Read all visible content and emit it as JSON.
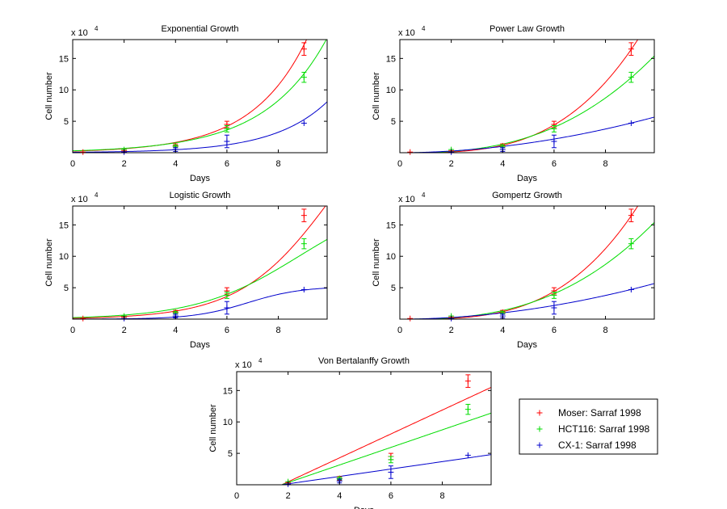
{
  "chart_data": [
    {
      "type": "line",
      "title": "Exponential Growth",
      "xlabel": "Days",
      "ylabel": "Cell number",
      "exponent_label": "x 10",
      "exponent_power": "4",
      "xlim": [
        0,
        9.9
      ],
      "ylim": [
        0,
        18
      ],
      "xticks": [
        0,
        2,
        4,
        6,
        8
      ],
      "yticks": [
        5,
        10,
        15
      ],
      "series": [
        {
          "name": "Moser: Sarraf 1998",
          "color": "#ff0000",
          "points": [
            {
              "x": 0.4,
              "y": 0.1
            },
            {
              "x": 2,
              "y": 0.3
            },
            {
              "x": 4,
              "y": 1.1
            },
            {
              "x": 6,
              "y": 4.5
            },
            {
              "x": 9,
              "y": 16.5
            }
          ],
          "errors": [
            0,
            0,
            0.3,
            0.5,
            1.0
          ],
          "fit": {
            "model": "exp",
            "a": 0.25,
            "b": 0.47
          }
        },
        {
          "name": "HCT116: Sarraf 1998",
          "color": "#00dd00",
          "points": [
            {
              "x": 2,
              "y": 0.5
            },
            {
              "x": 4,
              "y": 1.0
            },
            {
              "x": 6,
              "y": 3.8
            },
            {
              "x": 9,
              "y": 12.0
            }
          ],
          "errors": [
            0,
            0.2,
            0.5,
            0.8
          ],
          "fit": {
            "model": "exp",
            "a": 0.3,
            "b": 0.415
          }
        },
        {
          "name": "CX-1: Sarraf 1998",
          "color": "#0000cc",
          "points": [
            {
              "x": 2,
              "y": 0.1
            },
            {
              "x": 4,
              "y": 0.5
            },
            {
              "x": 6,
              "y": 1.8
            },
            {
              "x": 9,
              "y": 4.7
            }
          ],
          "errors": [
            0,
            0.3,
            1.0,
            0
          ],
          "fit": {
            "model": "exp",
            "a": 0.07,
            "b": 0.48
          }
        }
      ]
    },
    {
      "type": "line",
      "title": "Power Law Growth",
      "xlabel": "Days",
      "ylabel": "Cell number",
      "exponent_label": "x 10",
      "exponent_power": "4",
      "xlim": [
        0,
        9.9
      ],
      "ylim": [
        0,
        18
      ],
      "xticks": [
        0,
        2,
        4,
        6,
        8
      ],
      "yticks": [
        5,
        10,
        15
      ],
      "series": [
        {
          "name": "Moser: Sarraf 1998",
          "color": "#ff0000",
          "points": [
            {
              "x": 0.4,
              "y": 0.1
            },
            {
              "x": 2,
              "y": 0.3
            },
            {
              "x": 4,
              "y": 1.1
            },
            {
              "x": 6,
              "y": 4.5
            },
            {
              "x": 9,
              "y": 16.5
            }
          ],
          "errors": [
            0,
            0,
            0.3,
            0.5,
            1.0
          ],
          "fit": {
            "model": "pow",
            "a": 0.0133,
            "b": 3.24
          }
        },
        {
          "name": "HCT116: Sarraf 1998",
          "color": "#00dd00",
          "points": [
            {
              "x": 2,
              "y": 0.5
            },
            {
              "x": 4,
              "y": 1.0
            },
            {
              "x": 6,
              "y": 3.8
            },
            {
              "x": 9,
              "y": 12.0
            }
          ],
          "errors": [
            0,
            0.2,
            0.5,
            0.8
          ],
          "fit": {
            "model": "pow",
            "a": 0.0338,
            "b": 2.67
          }
        },
        {
          "name": "CX-1: Sarraf 1998",
          "color": "#0000cc",
          "points": [
            {
              "x": 2,
              "y": 0.1
            },
            {
              "x": 4,
              "y": 0.5
            },
            {
              "x": 6,
              "y": 1.8
            },
            {
              "x": 9,
              "y": 4.7
            }
          ],
          "errors": [
            0,
            0.3,
            1.0,
            0
          ],
          "fit": {
            "model": "pow",
            "a": 0.071,
            "b": 1.91
          }
        }
      ]
    },
    {
      "type": "line",
      "title": "Logistic Growth",
      "xlabel": "Days",
      "ylabel": "Cell number",
      "exponent_label": "x 10",
      "exponent_power": "4",
      "xlim": [
        0,
        9.9
      ],
      "ylim": [
        0,
        18
      ],
      "xticks": [
        0,
        2,
        4,
        6,
        8
      ],
      "yticks": [
        5,
        10,
        15
      ],
      "series": [
        {
          "name": "Moser: Sarraf 1998",
          "color": "#ff0000",
          "points": [
            {
              "x": 0.4,
              "y": 0.1
            },
            {
              "x": 2,
              "y": 0.3
            },
            {
              "x": 4,
              "y": 1.1
            },
            {
              "x": 6,
              "y": 4.5
            },
            {
              "x": 9,
              "y": 16.5
            }
          ],
          "errors": [
            0,
            0,
            0.3,
            0.5,
            1.0
          ],
          "fit": {
            "model": "logistic",
            "K": 40,
            "r": 0.55,
            "t0": 10.2
          }
        },
        {
          "name": "HCT116: Sarraf 1998",
          "color": "#00dd00",
          "points": [
            {
              "x": 2,
              "y": 0.5
            },
            {
              "x": 4,
              "y": 1.0
            },
            {
              "x": 6,
              "y": 3.8
            },
            {
              "x": 9,
              "y": 12.0
            }
          ],
          "errors": [
            0,
            0.2,
            0.5,
            0.8
          ],
          "fit": {
            "model": "logistic",
            "K": 20,
            "r": 0.5,
            "t0": 8.8
          }
        },
        {
          "name": "CX-1: Sarraf 1998",
          "color": "#0000cc",
          "points": [
            {
              "x": 2,
              "y": 0.1
            },
            {
              "x": 4,
              "y": 0.5
            },
            {
              "x": 6,
              "y": 1.8
            },
            {
              "x": 9,
              "y": 4.7
            }
          ],
          "errors": [
            0,
            0.3,
            1.0,
            0
          ],
          "fit": {
            "model": "logistic",
            "K": 5.2,
            "r": 0.95,
            "t0": 6.8
          }
        }
      ]
    },
    {
      "type": "line",
      "title": "Gompertz Growth",
      "xlabel": "Days",
      "ylabel": "Cell number",
      "exponent_label": "x 10",
      "exponent_power": "4",
      "xlim": [
        0,
        9.9
      ],
      "ylim": [
        0,
        18
      ],
      "xticks": [
        0,
        2,
        4,
        6,
        8
      ],
      "yticks": [
        5,
        10,
        15
      ],
      "series": [
        {
          "name": "Moser: Sarraf 1998",
          "color": "#ff0000",
          "points": [
            {
              "x": 0.4,
              "y": 0.1
            },
            {
              "x": 2,
              "y": 0.3
            },
            {
              "x": 4,
              "y": 1.1
            },
            {
              "x": 6,
              "y": 4.5
            },
            {
              "x": 9,
              "y": 16.5
            }
          ],
          "errors": [
            0,
            0,
            0.3,
            0.5,
            1.0
          ],
          "fit": {
            "model": "pow",
            "a": 0.0133,
            "b": 3.24
          }
        },
        {
          "name": "HCT116: Sarraf 1998",
          "color": "#00dd00",
          "points": [
            {
              "x": 2,
              "y": 0.5
            },
            {
              "x": 4,
              "y": 1.0
            },
            {
              "x": 6,
              "y": 3.8
            },
            {
              "x": 9,
              "y": 12.0
            }
          ],
          "errors": [
            0,
            0.2,
            0.5,
            0.8
          ],
          "fit": {
            "model": "pow",
            "a": 0.0338,
            "b": 2.67
          }
        },
        {
          "name": "CX-1: Sarraf 1998",
          "color": "#0000cc",
          "points": [
            {
              "x": 2,
              "y": 0.1
            },
            {
              "x": 4,
              "y": 0.5
            },
            {
              "x": 6,
              "y": 1.8
            },
            {
              "x": 9,
              "y": 4.7
            }
          ],
          "errors": [
            0,
            0.3,
            1.0,
            0
          ],
          "fit": {
            "model": "pow",
            "a": 0.071,
            "b": 1.91
          }
        }
      ]
    },
    {
      "type": "line",
      "title": "Von Bertalanffy Growth",
      "xlabel": "Days",
      "ylabel": "Cell number",
      "exponent_label": "x 10",
      "exponent_power": "4",
      "xlim": [
        0,
        9.9
      ],
      "ylim": [
        0,
        18
      ],
      "xticks": [
        0,
        2,
        4,
        6,
        8
      ],
      "yticks": [
        5,
        10,
        15
      ],
      "series": [
        {
          "name": "Moser: Sarraf 1998",
          "color": "#ff0000",
          "points": [
            {
              "x": 2,
              "y": 0.3
            },
            {
              "x": 4,
              "y": 1.0
            },
            {
              "x": 6,
              "y": 4.5
            },
            {
              "x": 9,
              "y": 16.5
            }
          ],
          "errors": [
            0,
            0.3,
            0.5,
            1.0
          ],
          "fit": {
            "model": "linear",
            "x0": 1.75,
            "y0": 0,
            "x1": 9.9,
            "y1": 15.5
          }
        },
        {
          "name": "HCT116: Sarraf 1998",
          "color": "#00dd00",
          "points": [
            {
              "x": 2,
              "y": 0.5
            },
            {
              "x": 4,
              "y": 1.0
            },
            {
              "x": 6,
              "y": 4.0
            },
            {
              "x": 9,
              "y": 12.0
            }
          ],
          "errors": [
            0,
            0.2,
            0.5,
            0.8
          ],
          "fit": {
            "model": "linear",
            "x0": 1.75,
            "y0": 0,
            "x1": 9.9,
            "y1": 11.4
          }
        },
        {
          "name": "CX-1: Sarraf 1998",
          "color": "#0000cc",
          "points": [
            {
              "x": 2,
              "y": 0.1
            },
            {
              "x": 4,
              "y": 0.6
            },
            {
              "x": 6,
              "y": 2.0
            },
            {
              "x": 9,
              "y": 4.7
            }
          ],
          "errors": [
            0,
            0.3,
            1.0,
            0
          ],
          "fit": {
            "model": "linear",
            "x0": 1.75,
            "y0": 0,
            "x1": 9.9,
            "y1": 4.8
          }
        }
      ]
    }
  ],
  "legend": {
    "entries": [
      {
        "marker": "+",
        "label": "Moser: Sarraf 1998",
        "color": "#ff0000"
      },
      {
        "marker": "+",
        "label": "HCT116: Sarraf 1998",
        "color": "#00dd00"
      },
      {
        "marker": "+",
        "label": "CX-1: Sarraf 1998",
        "color": "#0000cc"
      }
    ]
  }
}
